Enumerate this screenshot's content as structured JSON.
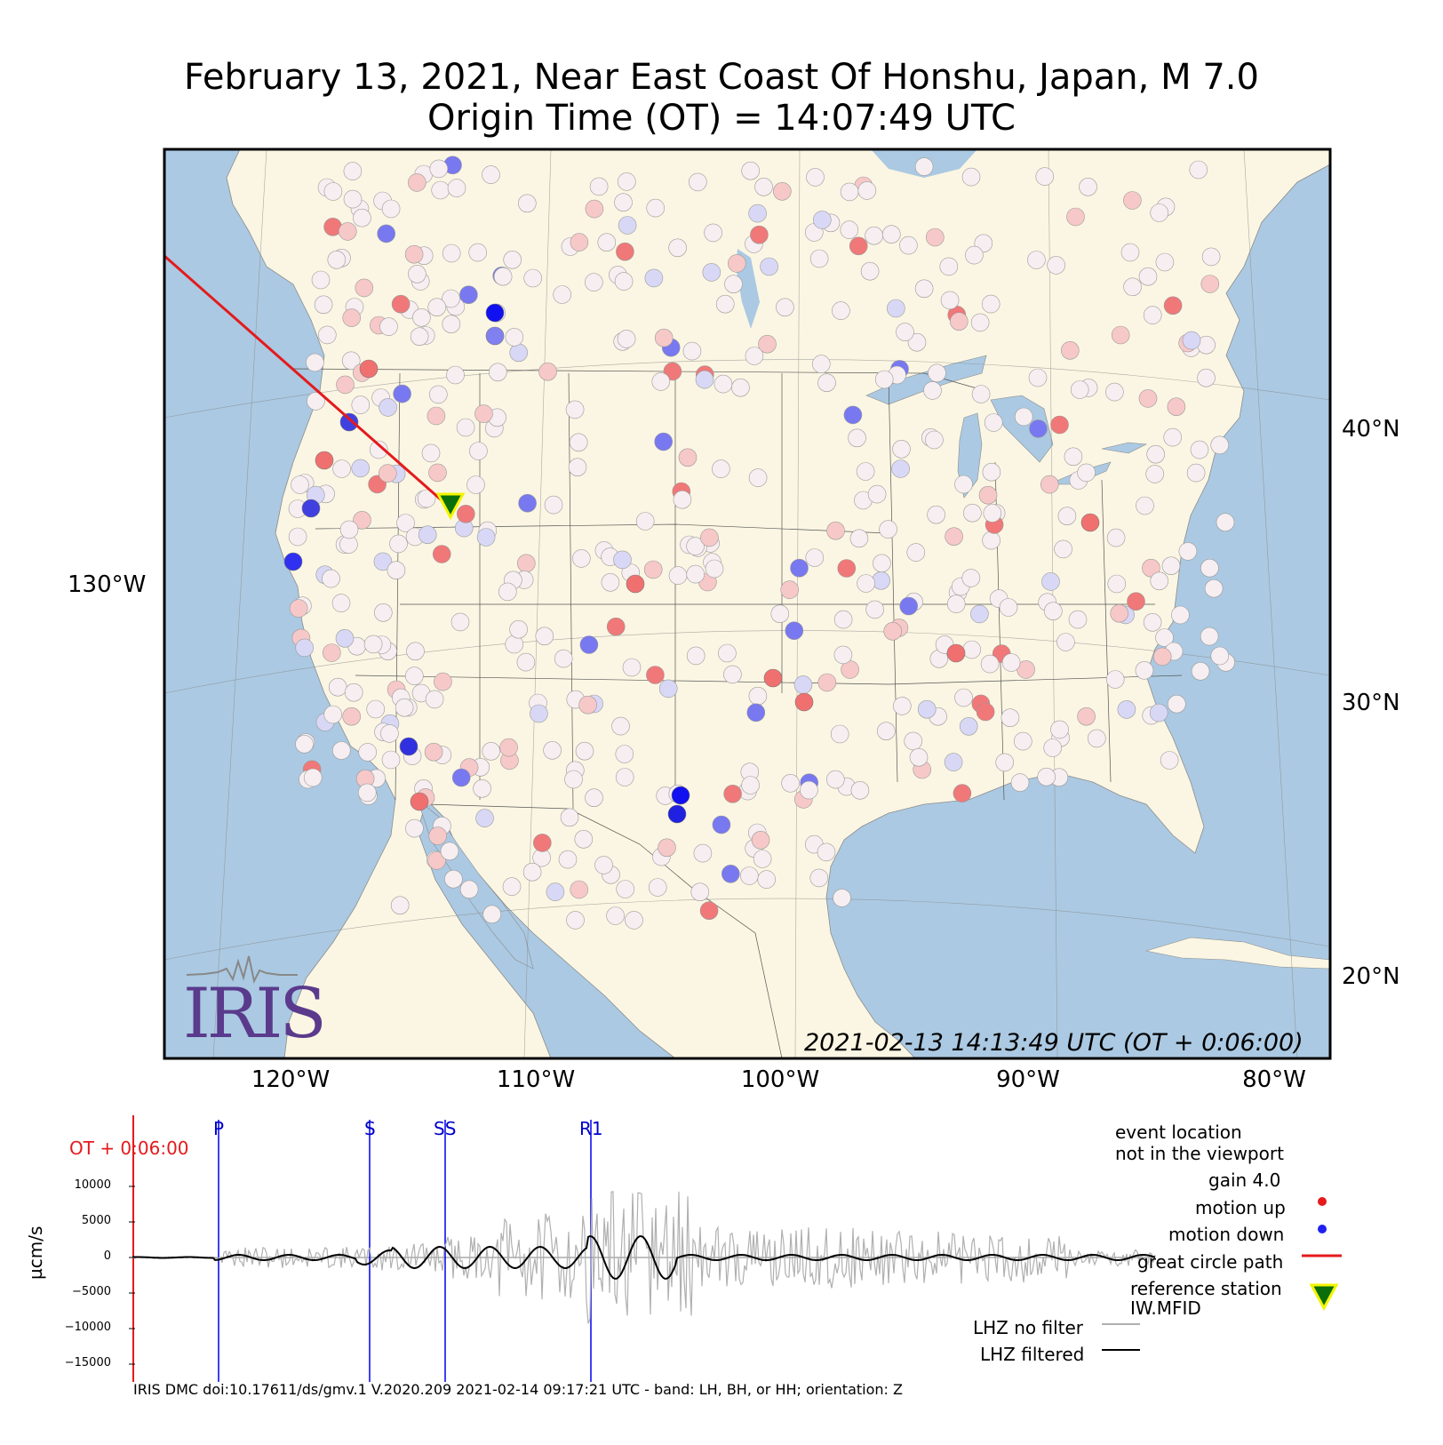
{
  "title": {
    "line1": "February 13, 2021, Near East Coast Of Honshu, Japan, M 7.0",
    "line2": "Origin Time (OT) = 14:07:49 UTC"
  },
  "map": {
    "lat_labels": [
      "40°N",
      "30°N",
      "20°N"
    ],
    "left_lon_label": "130°W",
    "lon_labels": [
      "120°W",
      "110°W",
      "100°W",
      "90°W",
      "80°W"
    ],
    "timestamp": "2021-02-13 14:13:49 UTC (OT + 0:06:00)",
    "logo_text": "IRIS",
    "colors": {
      "land": "#fbf6e3",
      "water": "#abc9e2",
      "path": "#e41a1c",
      "up": "#f08080",
      "down": "#2020f0"
    },
    "reference_station": {
      "name": "IW.MFID",
      "icon": "inverted-triangle-icon",
      "fill": "#0a6e0a",
      "outline": "#f4f400"
    }
  },
  "seismogram": {
    "ot_label": "OT + 0:06:00",
    "ylabel": "µcm/s",
    "yticks": [
      "10000",
      "5000",
      "0",
      "−5000",
      "−10000",
      "−15000"
    ],
    "phases": [
      "P",
      "S",
      "SS",
      "R1"
    ],
    "legend": {
      "event_location": "event location",
      "not_in_viewport": "not in the viewport",
      "gain": "gain  4.0",
      "motion_up": "motion up",
      "motion_down": "motion down",
      "great_circle": "great circle path",
      "reference_station": "reference station",
      "reference_station_name": "IW.MFID",
      "no_filter": "LHZ no filter",
      "filtered": "LHZ filtered"
    }
  },
  "footer": "IRIS DMC doi:10.17611/ds/gmv.1 V.2020.209 2021-02-14 09:17:21 UTC - band: LH, BH, or HH; orientation: Z"
}
